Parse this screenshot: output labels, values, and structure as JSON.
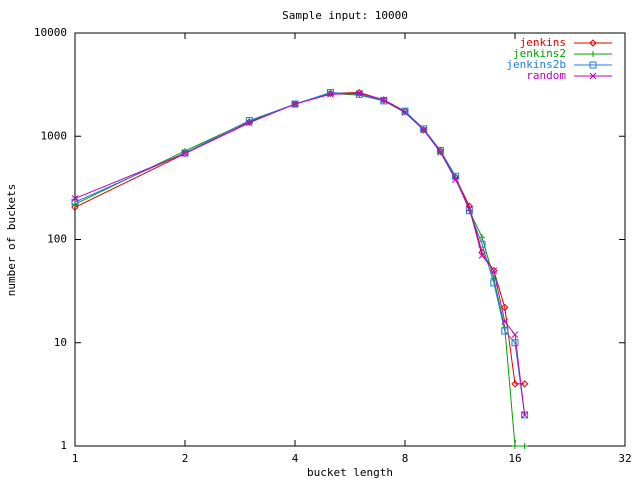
{
  "chart_data": {
    "type": "line",
    "title": "Sample input: 10000",
    "x_label": "bucket length",
    "y_label": "number of buckets",
    "x_scale": "log2",
    "y_scale": "log10",
    "legend": "top-right",
    "xlim": [
      1,
      32
    ],
    "xticks": [
      1,
      2,
      4,
      8,
      16,
      32
    ],
    "ylim": [
      1,
      10000
    ],
    "yticks": [
      1,
      10,
      100,
      1000,
      10000
    ],
    "x": [
      1,
      2,
      3,
      4,
      5,
      6,
      7,
      8,
      9,
      10,
      11,
      12,
      13,
      14,
      15,
      16,
      17
    ],
    "series": [
      {
        "name": "jenkins",
        "color": "#e00000",
        "marker": "diamond",
        "values": [
          205,
          680,
          1370,
          2050,
          2600,
          2650,
          2250,
          1750,
          1150,
          720,
          400,
          210,
          75,
          50,
          22,
          4,
          4
        ]
      },
      {
        "name": "jenkins2",
        "color": "#00a000",
        "marker": "plus",
        "values": [
          220,
          720,
          1400,
          2050,
          2600,
          2500,
          2200,
          1700,
          1150,
          700,
          400,
          190,
          105,
          42,
          14,
          1,
          1
        ]
      },
      {
        "name": "jenkins2b",
        "color": "#1e7ee0",
        "marker": "square",
        "values": [
          230,
          690,
          1420,
          2050,
          2650,
          2550,
          2200,
          1750,
          1180,
          730,
          410,
          190,
          90,
          38,
          13,
          10,
          2
        ]
      },
      {
        "name": "random",
        "color": "#c000c0",
        "marker": "cross",
        "values": [
          250,
          680,
          1350,
          2050,
          2550,
          2600,
          2250,
          1700,
          1150,
          700,
          380,
          200,
          70,
          50,
          16,
          12,
          2
        ]
      }
    ]
  }
}
